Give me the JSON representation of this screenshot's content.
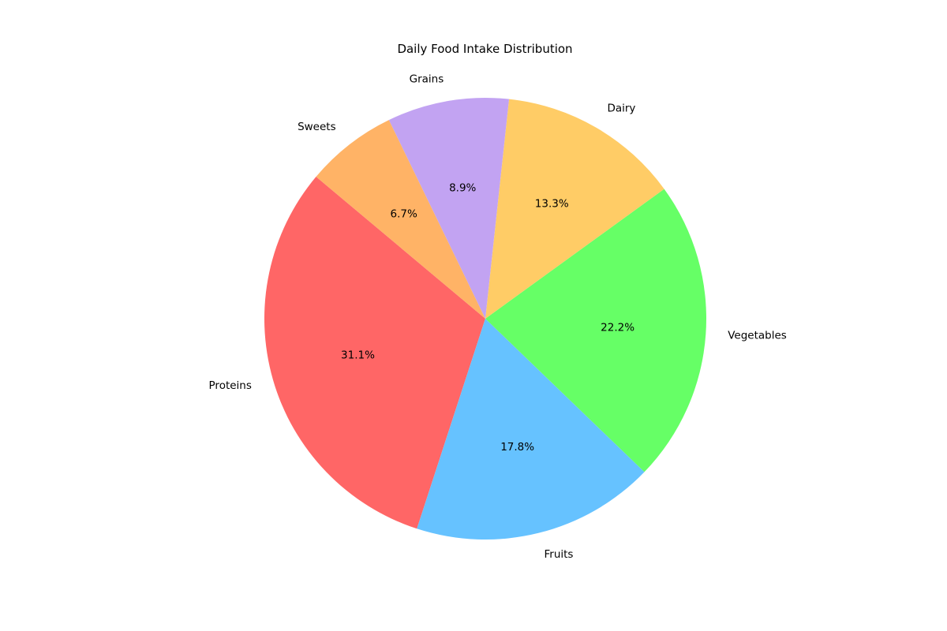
{
  "chart_data": {
    "type": "pie",
    "title": "Daily Food Intake Distribution",
    "start_angle_deg": 140,
    "direction": "counterclockwise",
    "categories": [
      "Proteins",
      "Fruits",
      "Vegetables",
      "Dairy",
      "Grains",
      "Sweets"
    ],
    "values": [
      31.1,
      17.8,
      22.2,
      13.3,
      8.9,
      6.7
    ],
    "value_labels": [
      "31.1%",
      "17.8%",
      "22.2%",
      "13.3%",
      "8.9%",
      "6.7%"
    ],
    "colors": [
      "#ff6666",
      "#66c2ff",
      "#66ff66",
      "#ffcc66",
      "#c2a3f2",
      "#ffb366"
    ],
    "legend": "none"
  }
}
